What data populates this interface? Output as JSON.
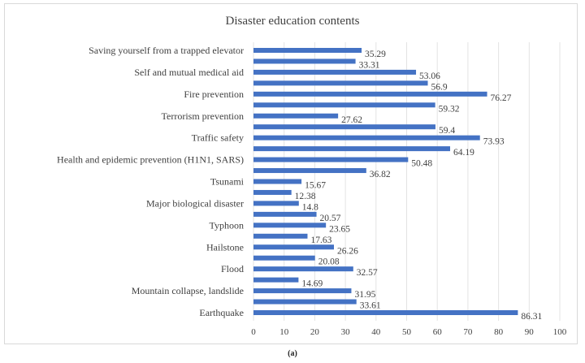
{
  "chart_data": {
    "type": "bar",
    "orientation": "horizontal",
    "title": "Disaster education contents",
    "categories": [
      "Saving yourself from a trapped elevator",
      "",
      "Self and mutual medical aid",
      "",
      "Fire prevention",
      "",
      "Terrorism prevention",
      "",
      "Traffic safety",
      "",
      "Health and epidemic prevention (H1N1, SARS)",
      "",
      "Tsunami",
      "",
      "Major biological disaster",
      "",
      "Typhoon",
      "",
      "Hailstone",
      "",
      "Flood",
      "",
      "Mountain collapse, landslide",
      "",
      "Earthquake"
    ],
    "values": [
      35.29,
      33.31,
      53.06,
      56.9,
      76.27,
      59.32,
      27.62,
      59.4,
      73.93,
      64.19,
      50.48,
      36.82,
      15.67,
      12.38,
      14.8,
      20.57,
      23.65,
      17.63,
      26.26,
      20.08,
      32.57,
      14.69,
      31.95,
      33.61,
      86.31
    ],
    "xlim": [
      0,
      100
    ],
    "xticks": [
      0,
      10,
      20,
      30,
      40,
      50,
      60,
      70,
      80,
      90,
      100
    ],
    "grid": "vertical",
    "bar_color": "#4472c4",
    "data_labels": true
  },
  "caption": "(a)"
}
